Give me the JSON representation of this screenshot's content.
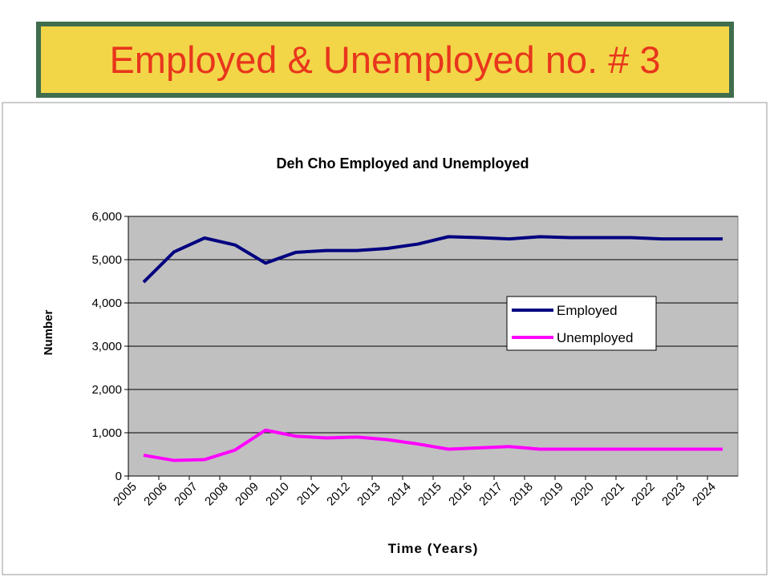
{
  "header": {
    "title": "Employed & Unemployed no. # 3"
  },
  "chart_data": {
    "type": "line",
    "title": "Deh Cho Employed and Unemployed",
    "x_label": "Time (Years)",
    "y_label": "Number",
    "categories": [
      "2005",
      "2006",
      "2007",
      "2008",
      "2009",
      "2010",
      "2011",
      "2012",
      "2013",
      "2014",
      "2015",
      "2016",
      "2017",
      "2018",
      "2019",
      "2020",
      "2021",
      "2022",
      "2023",
      "2024"
    ],
    "series": [
      {
        "name": "Employed",
        "color": "#000080",
        "values": [
          4480,
          5180,
          5500,
          5340,
          4920,
          5170,
          5210,
          5210,
          5260,
          5360,
          5530,
          5510,
          5480,
          5530,
          5510,
          5510,
          5510,
          5480,
          5480,
          5480
        ]
      },
      {
        "name": "Unemployed",
        "color": "#ff00ff",
        "values": [
          480,
          360,
          380,
          600,
          1060,
          920,
          880,
          900,
          840,
          740,
          620,
          650,
          680,
          620,
          620,
          620,
          620,
          620,
          620,
          620
        ]
      }
    ],
    "ylim": [
      0,
      6000
    ],
    "yticks": [
      0,
      {
        "value": 1000,
        "label": "1,000"
      },
      {
        "value": 2000,
        "label": "2,000"
      },
      {
        "value": 3000,
        "label": "3,000"
      },
      {
        "value": 4000,
        "label": "4,000"
      },
      {
        "value": 5000,
        "label": "5,000"
      },
      {
        "value": 6000,
        "label": "6,000"
      }
    ],
    "grid": true,
    "legend": "right",
    "plot_background": "#c0c0c0"
  }
}
